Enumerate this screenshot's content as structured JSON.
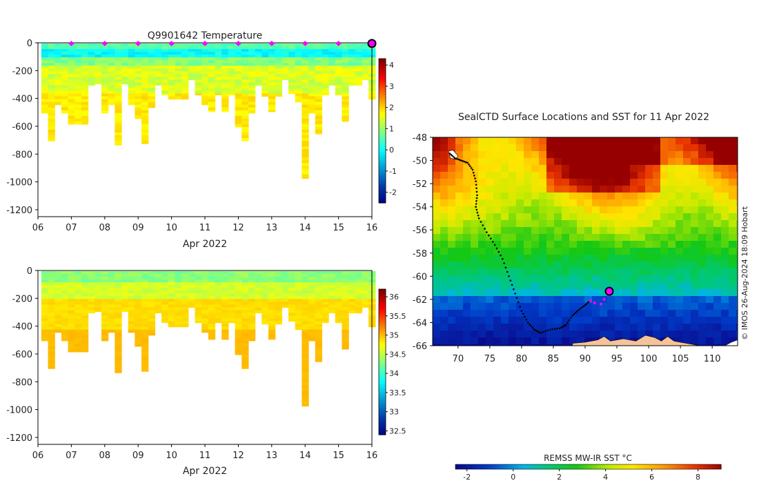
{
  "chart_data": [
    {
      "id": "temperature-section",
      "type": "heatmap",
      "title": "Q9901642  Temperature",
      "xlabel": "Apr 2022",
      "x_ticks": [
        "06",
        "07",
        "08",
        "09",
        "10",
        "11",
        "12",
        "13",
        "14",
        "15",
        "16"
      ],
      "x_range": [
        6,
        16
      ],
      "y_range": [
        -1250,
        0
      ],
      "y_ticks": [
        0,
        -200,
        -400,
        -600,
        -800,
        -1000,
        -1200
      ],
      "colorbar": {
        "ticks": [
          4,
          3,
          2,
          1,
          0,
          -1,
          -2
        ],
        "range": [
          -2.5,
          4.3
        ]
      },
      "profile_markers_day": [
        7,
        8,
        9,
        10,
        11,
        12,
        13,
        14,
        15
      ],
      "current_position_day": 16,
      "surface_value": 0.6,
      "mid_value": 1.2,
      "deep_value": 1.7,
      "cold_layer_value": -0.2,
      "profiles": [
        {
          "day": 6.2,
          "depth": 500
        },
        {
          "day": 6.4,
          "depth": 700
        },
        {
          "day": 6.6,
          "depth": 440
        },
        {
          "day": 6.8,
          "depth": 500
        },
        {
          "day": 7.0,
          "depth": 580
        },
        {
          "day": 7.2,
          "depth": 580
        },
        {
          "day": 7.4,
          "depth": 580
        },
        {
          "day": 7.6,
          "depth": 300
        },
        {
          "day": 7.8,
          "depth": 290
        },
        {
          "day": 8.0,
          "depth": 500
        },
        {
          "day": 8.2,
          "depth": 440
        },
        {
          "day": 8.4,
          "depth": 730
        },
        {
          "day": 8.6,
          "depth": 290
        },
        {
          "day": 8.8,
          "depth": 440
        },
        {
          "day": 9.0,
          "depth": 540
        },
        {
          "day": 9.2,
          "depth": 720
        },
        {
          "day": 9.4,
          "depth": 460
        },
        {
          "day": 9.6,
          "depth": 300
        },
        {
          "day": 9.8,
          "depth": 370
        },
        {
          "day": 10.0,
          "depth": 400
        },
        {
          "day": 10.2,
          "depth": 400
        },
        {
          "day": 10.4,
          "depth": 400
        },
        {
          "day": 10.6,
          "depth": 260
        },
        {
          "day": 10.8,
          "depth": 370
        },
        {
          "day": 11.0,
          "depth": 440
        },
        {
          "day": 11.2,
          "depth": 490
        },
        {
          "day": 11.4,
          "depth": 370
        },
        {
          "day": 11.6,
          "depth": 490
        },
        {
          "day": 11.8,
          "depth": 370
        },
        {
          "day": 12.0,
          "depth": 600
        },
        {
          "day": 12.2,
          "depth": 700
        },
        {
          "day": 12.4,
          "depth": 500
        },
        {
          "day": 12.6,
          "depth": 300
        },
        {
          "day": 12.8,
          "depth": 380
        },
        {
          "day": 13.0,
          "depth": 490
        },
        {
          "day": 13.2,
          "depth": 380
        },
        {
          "day": 13.4,
          "depth": 260
        },
        {
          "day": 13.6,
          "depth": 360
        },
        {
          "day": 13.8,
          "depth": 420
        },
        {
          "day": 14.0,
          "depth": 970
        },
        {
          "day": 14.2,
          "depth": 500
        },
        {
          "day": 14.4,
          "depth": 650
        },
        {
          "day": 14.6,
          "depth": 370
        },
        {
          "day": 14.8,
          "depth": 300
        },
        {
          "day": 15.0,
          "depth": 370
        },
        {
          "day": 15.2,
          "depth": 560
        },
        {
          "day": 15.4,
          "depth": 300
        },
        {
          "day": 15.6,
          "depth": 300
        },
        {
          "day": 15.8,
          "depth": 260
        },
        {
          "day": 16.0,
          "depth": 400
        }
      ]
    },
    {
      "id": "salinity-section",
      "type": "heatmap",
      "title": "",
      "xlabel": "Apr 2022",
      "x_ticks": [
        "06",
        "07",
        "08",
        "09",
        "10",
        "11",
        "12",
        "13",
        "14",
        "15",
        "16"
      ],
      "x_range": [
        6,
        16
      ],
      "y_range": [
        -1250,
        0
      ],
      "y_ticks": [
        0,
        -200,
        -400,
        -600,
        -800,
        -1000,
        -1200
      ],
      "colorbar": {
        "ticks": [
          36,
          35.5,
          35,
          34.5,
          34,
          33.5,
          33,
          32.5
        ],
        "range": [
          32.4,
          36.2
        ]
      },
      "surface_value": 34.2,
      "deep_value": 34.85,
      "bottom_value": 35.0
    },
    {
      "id": "sst-map",
      "type": "heatmap",
      "title": "SealCTD Surface Locations and SST for 11 Apr 2022",
      "lon_range": [
        66,
        114
      ],
      "lat_range": [
        -66,
        -48
      ],
      "x_ticks": [
        70,
        75,
        80,
        85,
        90,
        95,
        100,
        105,
        110
      ],
      "y_ticks": [
        -48,
        -50,
        -52,
        -54,
        -56,
        -58,
        -60,
        -62,
        -64,
        -66
      ],
      "colorbar": {
        "label": "REMSS MW-IR SST °C",
        "ticks": [
          -2,
          0,
          2,
          4,
          6,
          8
        ],
        "range": [
          -2.5,
          9
        ]
      },
      "track": [
        [
          68.7,
          -49.4
        ],
        [
          69.5,
          -49.8
        ],
        [
          70.5,
          -50.0
        ],
        [
          71.5,
          -50.2
        ],
        [
          72.3,
          -50.8
        ],
        [
          72.8,
          -51.8
        ],
        [
          73.0,
          -53.0
        ],
        [
          72.8,
          -54.0
        ],
        [
          73.3,
          -55.0
        ],
        [
          74.5,
          -56.2
        ],
        [
          75.8,
          -57.3
        ],
        [
          77.0,
          -58.5
        ],
        [
          78.0,
          -60.0
        ],
        [
          79.0,
          -61.5
        ],
        [
          80.0,
          -63.0
        ],
        [
          81.0,
          -64.0
        ],
        [
          82.0,
          -64.6
        ],
        [
          83.0,
          -64.9
        ],
        [
          84.5,
          -64.6
        ],
        [
          86.0,
          -64.5
        ],
        [
          87.0,
          -64.2
        ],
        [
          88.0,
          -63.4
        ],
        [
          89.0,
          -62.9
        ],
        [
          90.0,
          -62.5
        ],
        [
          90.8,
          -62.1
        ]
      ],
      "recent_track": [
        [
          90.8,
          -62.1
        ],
        [
          91.5,
          -62.3
        ],
        [
          92.5,
          -62.4
        ],
        [
          93.0,
          -62.0
        ],
        [
          93.6,
          -61.6
        ]
      ],
      "current_position": [
        93.8,
        -61.3
      ]
    }
  ],
  "credit": "© IMOS 26-Aug-2024 18:09 Hobart",
  "colors": {
    "profile_marker": "#ff00ff",
    "track": "#000000",
    "land": "#f5c39a"
  }
}
